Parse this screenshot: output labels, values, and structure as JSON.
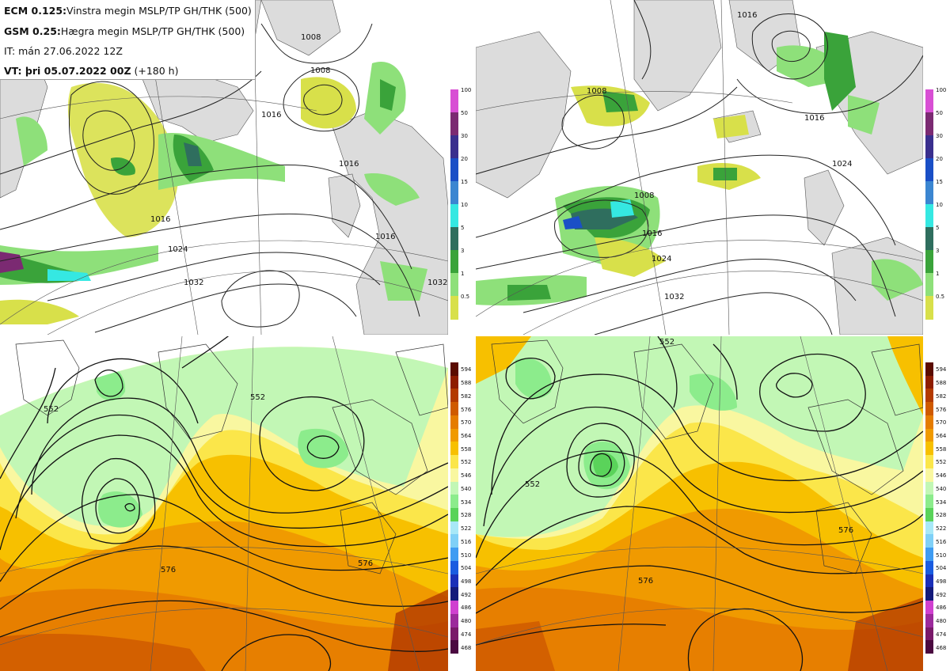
{
  "info": {
    "line1_model": "ECM 0.125:",
    "line1_text": "Vinstra megin MSLP/TP GH/THK (500)",
    "line2_model": "GSM 0.25:",
    "line2_text": "Hægra megin MSLP/TP GH/THK (500)",
    "line3": "IT: mán 27.06.2022 12Z",
    "line4_bold": "VT: þri 05.07.2022 00Z",
    "line4_rest": " (+180 h)"
  },
  "precip_colorbar": {
    "ticks": [
      "100",
      "50",
      "30",
      "20",
      "15",
      "10",
      "5",
      "3",
      "1",
      "0.5"
    ],
    "colors": [
      "#d84fd4",
      "#7b2a72",
      "#3a2f8e",
      "#1a4fc6",
      "#3b86d1",
      "#35e8e2",
      "#2f6e5e",
      "#3aa33a",
      "#8ee07a",
      "#d8e04a"
    ]
  },
  "thk_colorbar": {
    "ticks": [
      "594",
      "588",
      "582",
      "576",
      "570",
      "564",
      "558",
      "552",
      "546",
      "540",
      "534",
      "528",
      "522",
      "516",
      "510",
      "504",
      "498",
      "492",
      "486",
      "480",
      "474",
      "468"
    ],
    "colors": [
      "#5a0c00",
      "#8e1d00",
      "#b33a00",
      "#cf5a00",
      "#e57c00",
      "#f09a00",
      "#f7c000",
      "#fbe64a",
      "#f9f7a0",
      "#c2f7b5",
      "#8cec8c",
      "#5ad35a",
      "#a8e8f7",
      "#7fd0f7",
      "#3f9cf2",
      "#1a5ce0",
      "#1a2fb8",
      "#131a7a",
      "#d040d0",
      "#9c2a9c",
      "#7a1a6a",
      "#4a0a40"
    ]
  },
  "maps": {
    "top_left": {
      "contour_labels": [
        "1008",
        "1008",
        "1016",
        "1016",
        "1016",
        "1024",
        "1032",
        "1032",
        "1016"
      ]
    },
    "top_right": {
      "contour_labels": [
        "1008",
        "1008",
        "1016",
        "1024",
        "1016",
        "1024",
        "1032",
        "1016"
      ]
    },
    "bottom_left": {
      "contour_labels": [
        "552",
        "552",
        "576",
        "576"
      ]
    },
    "bottom_right": {
      "contour_labels": [
        "552",
        "552",
        "576",
        "576"
      ]
    }
  }
}
